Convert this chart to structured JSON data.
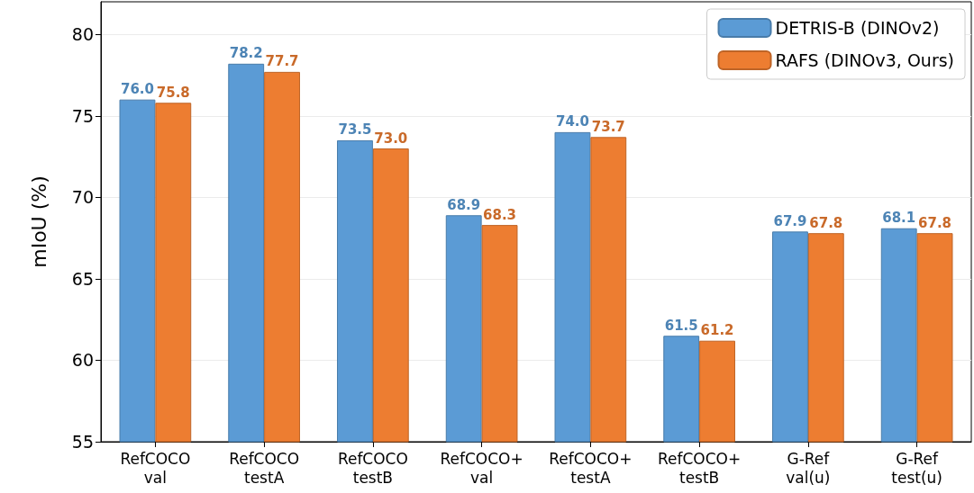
{
  "chart_data": {
    "type": "bar",
    "ylabel": "mIoU (%)",
    "categories": [
      "RefCOCO\nval",
      "RefCOCO\ntestA",
      "RefCOCO\ntestB",
      "RefCOCO+\nval",
      "RefCOCO+\ntestA",
      "RefCOCO+\ntestB",
      "G-Ref\nval(u)",
      "G-Ref\ntest(u)"
    ],
    "series": [
      {
        "name": "DETRIS-B (DINOv2)",
        "color": "#5b9bd5",
        "values": [
          76.0,
          78.2,
          73.5,
          68.9,
          74.0,
          61.5,
          67.9,
          68.1
        ],
        "value_labels": [
          "76.0",
          "78.2",
          "73.5",
          "68.9",
          "74.0",
          "61.5",
          "67.9",
          "68.1"
        ]
      },
      {
        "name": "RAFS (DINOv3, Ours)",
        "color": "#ed7d31",
        "values": [
          75.8,
          77.7,
          73.0,
          68.3,
          73.7,
          61.2,
          67.8,
          67.8
        ],
        "value_labels": [
          "75.8",
          "77.7",
          "73.0",
          "68.3",
          "73.7",
          "61.2",
          "67.8",
          "67.8"
        ]
      }
    ],
    "ylim": [
      55,
      82
    ],
    "yticks": [
      55,
      60,
      65,
      70,
      75,
      80
    ],
    "grid": "y",
    "legend": "top right"
  }
}
